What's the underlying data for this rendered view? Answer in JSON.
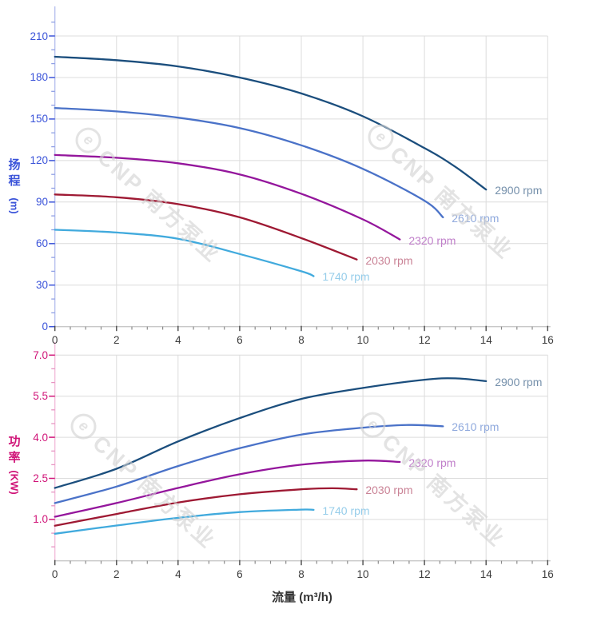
{
  "watermark": {
    "logo_letter": "e",
    "text": "CNP 南方泵业",
    "color": "#d2d2d2"
  },
  "x_axis": {
    "title": "流量 (m³/h)",
    "tick_values": [
      0,
      2,
      4,
      6,
      8,
      10,
      12,
      14,
      16
    ],
    "tick_labels": [
      "0",
      "2",
      "4",
      "6",
      "8",
      "10",
      "12",
      "14",
      "16"
    ],
    "minor_step": 0.5,
    "label_color": "#3c3c3c",
    "line_color": "#c8c8c8",
    "tick_color": "#4a4a4a"
  },
  "chart_data": [
    {
      "type": "line",
      "id": "head",
      "ylabel_main": "扬程",
      "ylabel_unit": "(m)",
      "xlabel": "",
      "axis_color": "#3a53d9",
      "axis_line_color": "#b2bcee",
      "minor_tick_color": "#8f9fe4",
      "grid": true,
      "grid_color": "#dcdcdc",
      "xlim": [
        0,
        16
      ],
      "ylim": [
        0,
        210
      ],
      "ytick_values": [
        0,
        30,
        60,
        90,
        120,
        150,
        180,
        210
      ],
      "ytick_labels": [
        "0",
        "30",
        "60",
        "90",
        "120",
        "150",
        "180",
        "210"
      ],
      "yminor_step": 10,
      "legend_position": "end-of-curve",
      "series": [
        {
          "name": "2900 rpm",
          "color": "#1b4e7d",
          "label_color": "#7590ab",
          "points": [
            [
              0,
              195
            ],
            [
              2,
              192.5
            ],
            [
              4,
              188
            ],
            [
              6,
              180
            ],
            [
              8,
              168.5
            ],
            [
              10,
              152
            ],
            [
              12,
              129
            ],
            [
              13,
              115.5
            ],
            [
              14,
              99
            ]
          ]
        },
        {
          "name": "2610 rpm",
          "color": "#4a72c8",
          "label_color": "#8fa9dd",
          "points": [
            [
              0,
              158
            ],
            [
              2,
              155.5
            ],
            [
              4,
              151
            ],
            [
              6,
              143.5
            ],
            [
              8,
              131
            ],
            [
              10,
              114
            ],
            [
              12,
              91
            ],
            [
              12.6,
              79
            ]
          ]
        },
        {
          "name": "2320 rpm",
          "color": "#94169c",
          "label_color": "#c07fca",
          "points": [
            [
              0,
              124
            ],
            [
              2,
              122
            ],
            [
              4,
              118
            ],
            [
              6,
              110
            ],
            [
              8,
              96
            ],
            [
              10,
              77.5
            ],
            [
              11.2,
              63
            ]
          ]
        },
        {
          "name": "2030 rpm",
          "color": "#9e1933",
          "label_color": "#ca8396",
          "points": [
            [
              0,
              95.5
            ],
            [
              2,
              93.5
            ],
            [
              4,
              88.5
            ],
            [
              6,
              79
            ],
            [
              8,
              64
            ],
            [
              9.8,
              48.5
            ]
          ]
        },
        {
          "name": "1740 rpm",
          "color": "#41aadd",
          "label_color": "#96cdea",
          "points": [
            [
              0,
              70
            ],
            [
              2,
              68
            ],
            [
              4,
              63.5
            ],
            [
              6,
              52.5
            ],
            [
              8,
              40
            ],
            [
              8.4,
              36.5
            ]
          ]
        }
      ]
    },
    {
      "type": "line",
      "id": "power",
      "ylabel_main": "功率",
      "ylabel_unit": "(KW)",
      "xlabel": "流量 (m³/h)",
      "axis_color": "#d01478",
      "axis_line_color": "#f2b8d8",
      "minor_tick_color": "#e794c2",
      "grid": true,
      "grid_color": "#dcdcdc",
      "xlim": [
        0,
        16
      ],
      "ylim": [
        1.0,
        7.0
      ],
      "ytick_values": [
        1.0,
        2.5,
        4.0,
        5.5,
        7.0
      ],
      "ytick_labels": [
        "1.0",
        "2.5",
        "4.0",
        "5.5",
        "7.0"
      ],
      "yminor_step": 0.5,
      "legend_position": "end-of-curve",
      "series": [
        {
          "name": "2900 rpm",
          "color": "#1b4e7d",
          "label_color": "#7590ab",
          "points": [
            [
              0,
              2.15
            ],
            [
              2,
              2.85
            ],
            [
              4,
              3.85
            ],
            [
              6,
              4.7
            ],
            [
              8,
              5.4
            ],
            [
              10,
              5.8
            ],
            [
              12,
              6.1
            ],
            [
              13,
              6.15
            ],
            [
              14,
              6.05
            ]
          ]
        },
        {
          "name": "2610 rpm",
          "color": "#4a72c8",
          "label_color": "#8fa9dd",
          "points": [
            [
              0,
              1.6
            ],
            [
              2,
              2.2
            ],
            [
              4,
              2.95
            ],
            [
              6,
              3.6
            ],
            [
              8,
              4.1
            ],
            [
              10,
              4.35
            ],
            [
              11.5,
              4.45
            ],
            [
              12.6,
              4.4
            ]
          ]
        },
        {
          "name": "2320 rpm",
          "color": "#94169c",
          "label_color": "#c07fca",
          "points": [
            [
              0,
              1.1
            ],
            [
              2,
              1.6
            ],
            [
              4,
              2.15
            ],
            [
              6,
              2.65
            ],
            [
              8,
              3.0
            ],
            [
              10,
              3.15
            ],
            [
              11.2,
              3.1
            ]
          ]
        },
        {
          "name": "2030 rpm",
          "color": "#9e1933",
          "label_color": "#ca8396",
          "points": [
            [
              0,
              0.77
            ],
            [
              2,
              1.2
            ],
            [
              4,
              1.62
            ],
            [
              6,
              1.92
            ],
            [
              8,
              2.1
            ],
            [
              9,
              2.14
            ],
            [
              9.8,
              2.1
            ]
          ]
        },
        {
          "name": "1740 rpm",
          "color": "#41aadd",
          "label_color": "#96cdea",
          "points": [
            [
              0,
              0.48
            ],
            [
              2,
              0.78
            ],
            [
              4,
              1.06
            ],
            [
              6,
              1.27
            ],
            [
              8,
              1.36
            ],
            [
              8.4,
              1.35
            ]
          ]
        }
      ]
    }
  ]
}
